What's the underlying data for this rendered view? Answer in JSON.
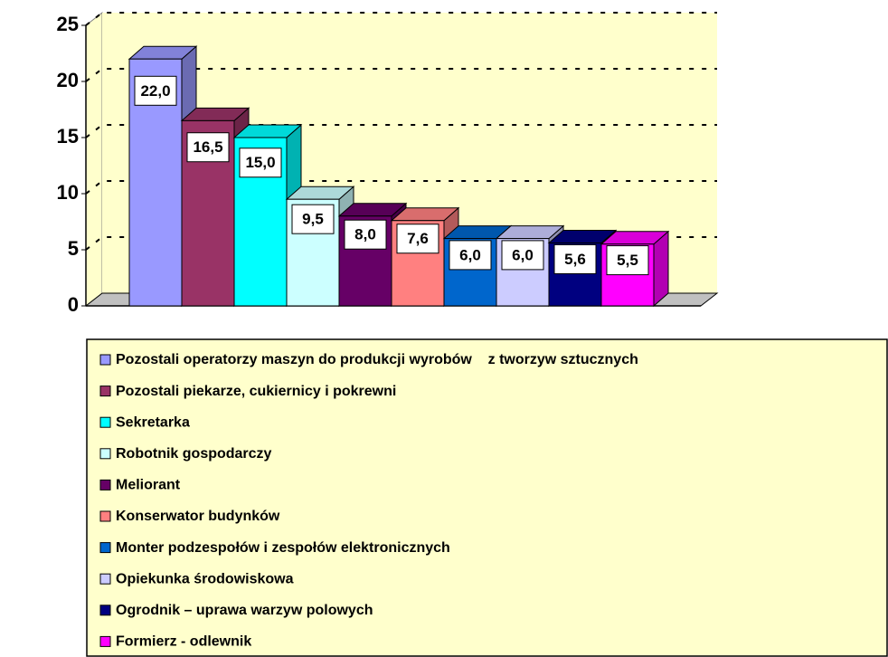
{
  "chart_data": {
    "type": "bar",
    "ylim": [
      0,
      25
    ],
    "yticks": [
      0,
      5,
      10,
      15,
      20,
      25
    ],
    "grid": true,
    "series": [
      {
        "name": "Pozostali operatorzy maszyn do produkcji wyrobów    z tworzyw sztucznych",
        "color": "#9999ff",
        "values": [
          22.0
        ],
        "value_labels": [
          "22,0"
        ]
      },
      {
        "name": "Pozostali piekarze, cukiernicy i pokrewni",
        "color": "#993366",
        "values": [
          16.5
        ],
        "value_labels": [
          "16,5"
        ]
      },
      {
        "name": "Sekretarka",
        "color": "#00ffff",
        "values": [
          15.0
        ],
        "value_labels": [
          "15,0"
        ]
      },
      {
        "name": "Robotnik gospodarczy",
        "color": "#ccffff",
        "values": [
          9.5
        ],
        "value_labels": [
          "9,5"
        ]
      },
      {
        "name": "Meliorant",
        "color": "#660066",
        "values": [
          8.0
        ],
        "value_labels": [
          "8,0"
        ]
      },
      {
        "name": "Konserwator budynków",
        "color": "#ff8080",
        "values": [
          7.6
        ],
        "value_labels": [
          "7,6"
        ]
      },
      {
        "name": "Monter podzespołów i zespołów elektronicznych",
        "color": "#0066cc",
        "values": [
          6.0
        ],
        "value_labels": [
          "6,0"
        ]
      },
      {
        "name": "Opiekunka środowiskowa",
        "color": "#ccccff",
        "values": [
          6.0
        ],
        "value_labels": [
          "6,0"
        ]
      },
      {
        "name": "Ogrodnik – uprawa warzyw polowych",
        "color": "#000080",
        "values": [
          5.6
        ],
        "value_labels": [
          "5,6"
        ]
      },
      {
        "name": "Formierz - odlewnik",
        "color": "#ff00ff",
        "values": [
          5.5
        ],
        "value_labels": [
          "5,5"
        ]
      }
    ]
  }
}
